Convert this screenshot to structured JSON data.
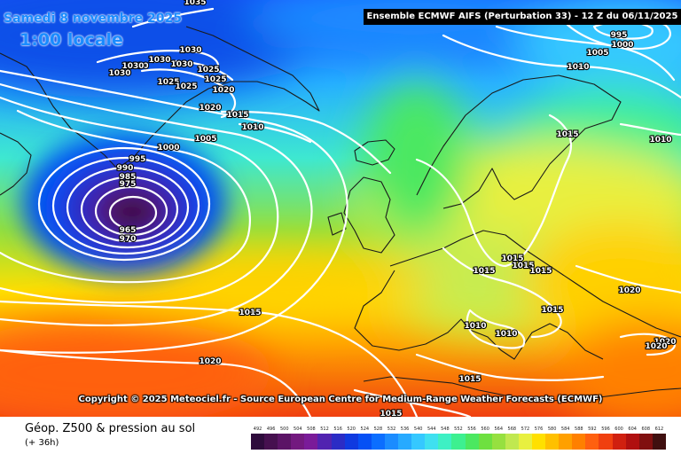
{
  "overlay": {
    "date": "Samedi 8 novembre 2025",
    "time": "1:00 locale"
  },
  "header": {
    "banner": "Ensemble ECMWF AIFS  (Perturbation 33)  -  12 Z du 06/11/2025"
  },
  "footer": {
    "title": "Géop. Z500 & pression au sol",
    "subtitle": "(+ 36h)",
    "copyright": "Copyright © 2025 Meteociel.fr - Source European Centre for Medium-Range Weather Forecasts (ECMWF)"
  },
  "legend": {
    "values": [
      "492",
      "496",
      "500",
      "504",
      "508",
      "512",
      "516",
      "520",
      "524",
      "528",
      "532",
      "536",
      "540",
      "544",
      "548",
      "552",
      "556",
      "560",
      "564",
      "568",
      "572",
      "576",
      "580",
      "584",
      "588",
      "592",
      "596",
      "600",
      "604",
      "608",
      "612"
    ],
    "colors": [
      "#2e0b3c",
      "#46104f",
      "#5b1466",
      "#73197f",
      "#7a1b99",
      "#5123b0",
      "#2b2cc5",
      "#0f3ae0",
      "#0650f5",
      "#0b6eff",
      "#1b8cff",
      "#27aaff",
      "#35c8ff",
      "#3fe0f0",
      "#3ef0c4",
      "#3df090",
      "#4be860",
      "#6ee040",
      "#96e040",
      "#c0e850",
      "#e8f040",
      "#ffe000",
      "#ffc000",
      "#ffa000",
      "#ff8000",
      "#ff6010",
      "#f04010",
      "#d02010",
      "#b01010",
      "#801010",
      "#401010"
    ]
  },
  "contours": {
    "labels": [
      "1035",
      "1030",
      "1030",
      "1030",
      "1030",
      "1030",
      "1030",
      "1025",
      "1025",
      "1025",
      "1025",
      "1020",
      "1020",
      "1015",
      "1010",
      "1005",
      "1000",
      "995",
      "990",
      "985",
      "975",
      "965",
      "970",
      "1015",
      "1020",
      "1015",
      "1015",
      "1015",
      "1015",
      "1010",
      "1010",
      "1015",
      "1015",
      "1020",
      "1020",
      "1020",
      "1005",
      "1010",
      "1010",
      "995",
      "1000",
      "1015",
      "1015"
    ]
  }
}
